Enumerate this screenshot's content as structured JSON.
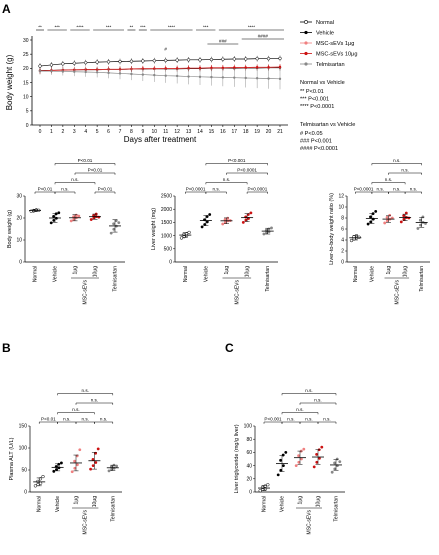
{
  "panels": {
    "A": "A",
    "B": "B",
    "C": "C"
  },
  "colors": {
    "normal": "#000000",
    "vehicle": "#000000",
    "sevs1": "#f08080",
    "sevs10": "#cc1111",
    "telmisartan": "#888888"
  },
  "chart_data": [
    {
      "id": "body-weight-timecourse",
      "type": "line",
      "xlabel": "Days after treatment",
      "ylabel": "Body weight (g)",
      "x": [
        0,
        1,
        2,
        3,
        4,
        5,
        6,
        7,
        8,
        9,
        10,
        11,
        12,
        13,
        14,
        15,
        16,
        17,
        18,
        19,
        20,
        21
      ],
      "ylim": [
        0,
        30
      ],
      "yticks": [
        0,
        5,
        10,
        15,
        20,
        25,
        30
      ],
      "series": [
        {
          "name": "Normal",
          "marker": "open-circle",
          "color": "#000000",
          "values": [
            20.8,
            21.2,
            21.6,
            21.8,
            22.0,
            22.2,
            22.3,
            22.4,
            22.5,
            22.6,
            22.7,
            22.8,
            22.9,
            23.0,
            23.0,
            23.1,
            23.2,
            23.3,
            23.3,
            23.4,
            23.4,
            23.5
          ]
        },
        {
          "name": "Vehicle",
          "marker": "filled-circle",
          "color": "#000000",
          "values": [
            19.2,
            19.3,
            19.4,
            19.4,
            19.5,
            19.5,
            19.6,
            19.6,
            19.7,
            19.7,
            19.8,
            19.8,
            19.8,
            19.9,
            19.9,
            20.0,
            20.0,
            20.0,
            20.1,
            20.1,
            20.2,
            20.2
          ]
        },
        {
          "name": "MSC-sEVs 1μg",
          "marker": "filled-circle",
          "color": "#f08080",
          "values": [
            19.0,
            19.2,
            19.3,
            19.4,
            19.5,
            19.5,
            19.6,
            19.6,
            19.7,
            19.8,
            19.8,
            19.9,
            19.9,
            20.0,
            20.0,
            20.1,
            20.1,
            20.2,
            20.2,
            20.3,
            20.3,
            20.4
          ]
        },
        {
          "name": "MSC-sEVs 10μg",
          "marker": "filled-circle",
          "color": "#cc1111",
          "values": [
            19.1,
            19.3,
            19.4,
            19.5,
            19.6,
            19.6,
            19.7,
            19.7,
            19.8,
            19.9,
            19.9,
            20.0,
            20.0,
            20.1,
            20.1,
            20.2,
            20.2,
            20.3,
            20.3,
            20.4,
            20.4,
            20.5
          ]
        },
        {
          "name": "Telmisartan",
          "marker": "filled-circle",
          "color": "#888888",
          "values": [
            19.0,
            19.0,
            18.9,
            18.8,
            18.7,
            18.6,
            18.4,
            18.2,
            18.0,
            17.8,
            17.6,
            17.4,
            17.3,
            17.1,
            17.0,
            16.9,
            16.8,
            16.7,
            16.6,
            16.5,
            16.4,
            16.3
          ]
        }
      ],
      "brackets": [
        {
          "x1": 0,
          "x2": 0,
          "label": "**"
        },
        {
          "x1": 1,
          "x2": 2,
          "label": "***"
        },
        {
          "x1": 3,
          "x2": 4,
          "label": "****"
        },
        {
          "x1": 5,
          "x2": 7,
          "label": "***"
        },
        {
          "x1": 8,
          "x2": 8,
          "label": "**"
        },
        {
          "x1": 9,
          "x2": 9,
          "label": "***"
        },
        {
          "x1": 10,
          "x2": 13,
          "label": "****"
        },
        {
          "x1": 14,
          "x2": 15,
          "label": "***"
        },
        {
          "x1": 16,
          "x2": 21,
          "label": "****"
        }
      ],
      "hash_brackets": [
        {
          "x1": 11,
          "x2": 11,
          "label": "#"
        },
        {
          "x1": 15,
          "x2": 17,
          "label": "###"
        },
        {
          "x1": 18,
          "x2": 21,
          "label": "####"
        }
      ],
      "legend": [
        "Normal",
        "Vehicle",
        "MSC-sEVs 1μg",
        "MSC-sEVs 10μg",
        "Telmisartan"
      ],
      "annotations": {
        "normal_title": "Normal vs Vehicle",
        "normal_lines": [
          "** P<0.01",
          "*** P<0.001",
          "**** P<0.0001"
        ],
        "telmi_title": "Telmisartan vs Vehicle",
        "telmi_lines": [
          "# P<0.05",
          "### P<0.001",
          "#### P<0.0001"
        ]
      }
    },
    {
      "id": "body-weight-final",
      "type": "scatter",
      "ylabel": "Body weight (g)",
      "ylim": [
        0,
        30
      ],
      "yticks": [
        0,
        10,
        20,
        30
      ],
      "categories": [
        "Normal",
        "Vehicle",
        "1μg",
        "10μg",
        "Telmisartan"
      ],
      "group_label": "MSC-sEVs",
      "means": [
        23.4,
        20.0,
        20.1,
        20.6,
        16.4
      ],
      "sds": [
        0.5,
        2.0,
        1.4,
        1.2,
        2.8
      ],
      "points": [
        [
          23.1,
          23.4,
          23.7,
          23.2,
          23.6,
          23.5
        ],
        [
          17.8,
          18.9,
          19.9,
          20.7,
          21.9,
          22.4
        ],
        [
          18.7,
          19.4,
          20.1,
          20.6,
          21.3,
          20.9
        ],
        [
          19.3,
          20.0,
          20.6,
          21.1,
          21.8,
          20.4
        ],
        [
          13.1,
          14.9,
          16.3,
          17.4,
          18.8,
          17.9
        ]
      ],
      "brackets": [
        {
          "from": 0,
          "to": 1,
          "label": "P<0.01"
        },
        {
          "from": 1,
          "to": 2,
          "label": "n.s."
        },
        {
          "from": 1,
          "to": 3,
          "label": "n.s."
        },
        {
          "from": 1,
          "to": 4,
          "label": "P<0.01"
        },
        {
          "from": 2,
          "to": 4,
          "label": "P<0.01"
        },
        {
          "from": 3,
          "to": 4,
          "label": "P<0.01"
        }
      ]
    },
    {
      "id": "liver-weight",
      "type": "scatter",
      "ylabel": "Liver weight (mg)",
      "ylim": [
        0,
        2500
      ],
      "yticks": [
        0,
        500,
        1000,
        1500,
        2000,
        2500
      ],
      "categories": [
        "Normal",
        "Vehicle",
        "1μg",
        "10μg",
        "Telmisartan"
      ],
      "group_label": "MSC-sEVs",
      "means": [
        1020,
        1570,
        1560,
        1680,
        1170
      ],
      "sds": [
        90,
        190,
        110,
        150,
        110
      ],
      "points": [
        [
          910,
          960,
          1010,
          1040,
          1070,
          1120
        ],
        [
          1330,
          1420,
          1520,
          1600,
          1720,
          1800
        ],
        [
          1440,
          1500,
          1560,
          1610,
          1660,
          1570
        ],
        [
          1500,
          1590,
          1650,
          1710,
          1800,
          1860
        ],
        [
          1060,
          1110,
          1150,
          1200,
          1250,
          1290
        ]
      ],
      "brackets": [
        {
          "from": 0,
          "to": 1,
          "label": "P<0.0001"
        },
        {
          "from": 1,
          "to": 2,
          "label": "n.s."
        },
        {
          "from": 1,
          "to": 3,
          "label": "n.s."
        },
        {
          "from": 1,
          "to": 4,
          "label": "P<0.001"
        },
        {
          "from": 2,
          "to": 4,
          "label": "P<0.0001"
        },
        {
          "from": 3,
          "to": 4,
          "label": "P<0.0001"
        }
      ]
    },
    {
      "id": "liver-to-body",
      "type": "scatter",
      "ylabel": "Liver-to-body weight ratio (%)",
      "ylim": [
        0,
        12
      ],
      "yticks": [
        0,
        2,
        4,
        6,
        8,
        10,
        12
      ],
      "categories": [
        "Normal",
        "Vehicle",
        "1μg",
        "10μg",
        "Telmisartan"
      ],
      "group_label": "MSC-sEVs",
      "means": [
        4.4,
        7.9,
        7.8,
        8.1,
        7.2
      ],
      "sds": [
        0.4,
        0.9,
        0.6,
        0.6,
        0.9
      ],
      "points": [
        [
          3.9,
          4.2,
          4.4,
          4.6,
          4.8,
          4.5
        ],
        [
          6.9,
          7.3,
          7.8,
          8.2,
          8.8,
          9.2
        ],
        [
          7.1,
          7.5,
          7.8,
          8.1,
          8.5,
          8.0
        ],
        [
          7.3,
          7.8,
          8.1,
          8.4,
          8.9,
          8.0
        ],
        [
          6.1,
          6.7,
          7.2,
          7.6,
          8.2,
          7.0
        ]
      ],
      "brackets": [
        {
          "from": 0,
          "to": 1,
          "label": "P<0.0001"
        },
        {
          "from": 1,
          "to": 2,
          "label": "n.s."
        },
        {
          "from": 2,
          "to": 3,
          "label": "n.s."
        },
        {
          "from": 3,
          "to": 4,
          "label": "n.s."
        },
        {
          "from": 1,
          "to": 3,
          "label": "n.s."
        },
        {
          "from": 2,
          "to": 4,
          "label": "n.s."
        },
        {
          "from": 1,
          "to": 4,
          "label": "n.s."
        }
      ]
    },
    {
      "id": "plasma-alt",
      "type": "scatter",
      "ylabel": "Plasma ALT (U/L)",
      "ylim": [
        0,
        150
      ],
      "yticks": [
        0,
        50,
        100,
        150
      ],
      "categories": [
        "Normal",
        "Vehicle",
        "1μg",
        "10μg",
        "Telmisartan"
      ],
      "group_label": "MSC-sEVs",
      "means": [
        23,
        56,
        66,
        71,
        55
      ],
      "sds": [
        9,
        8,
        18,
        19,
        6
      ],
      "points": [
        [
          14,
          17,
          20,
          24,
          30,
          35
        ],
        [
          47,
          51,
          55,
          58,
          63,
          66
        ],
        [
          46,
          54,
          62,
          70,
          82,
          96
        ],
        [
          52,
          60,
          67,
          74,
          88,
          98
        ],
        [
          48,
          51,
          54,
          57,
          61,
          59
        ]
      ],
      "brackets": [
        {
          "from": 0,
          "to": 1,
          "label": "P<0.01"
        },
        {
          "from": 1,
          "to": 2,
          "label": "n.s."
        },
        {
          "from": 2,
          "to": 3,
          "label": "n.s."
        },
        {
          "from": 3,
          "to": 4,
          "label": "n.s."
        },
        {
          "from": 1,
          "to": 3,
          "label": "n.s."
        },
        {
          "from": 2,
          "to": 4,
          "label": "n.s."
        },
        {
          "from": 1,
          "to": 4,
          "label": "n.s."
        }
      ]
    },
    {
      "id": "liver-triglyceride",
      "type": "scatter",
      "ylabel": "Liver triglyceride (mg/g liver)",
      "ylim": [
        0,
        100
      ],
      "yticks": [
        0,
        20,
        40,
        60,
        80,
        100
      ],
      "categories": [
        "Normal",
        "Vehicle",
        "1μg",
        "10μg",
        "Telmisartan"
      ],
      "group_label": "MSC-sEVs",
      "means": [
        6,
        43,
        52,
        53,
        41
      ],
      "sds": [
        4,
        12,
        10,
        11,
        8
      ],
      "points": [
        [
          2,
          4,
          5,
          7,
          9,
          11
        ],
        [
          26,
          33,
          40,
          48,
          56,
          60
        ],
        [
          40,
          45,
          50,
          55,
          62,
          65
        ],
        [
          38,
          45,
          51,
          57,
          64,
          68
        ],
        [
          30,
          35,
          40,
          44,
          50,
          46
        ]
      ],
      "brackets": [
        {
          "from": 0,
          "to": 1,
          "label": "P<0.001"
        },
        {
          "from": 1,
          "to": 2,
          "label": "n.s."
        },
        {
          "from": 2,
          "to": 3,
          "label": "n.s."
        },
        {
          "from": 3,
          "to": 4,
          "label": "n.s."
        },
        {
          "from": 1,
          "to": 3,
          "label": "n.s."
        },
        {
          "from": 2,
          "to": 4,
          "label": "n.s."
        },
        {
          "from": 1,
          "to": 4,
          "label": "n.s."
        }
      ]
    }
  ]
}
